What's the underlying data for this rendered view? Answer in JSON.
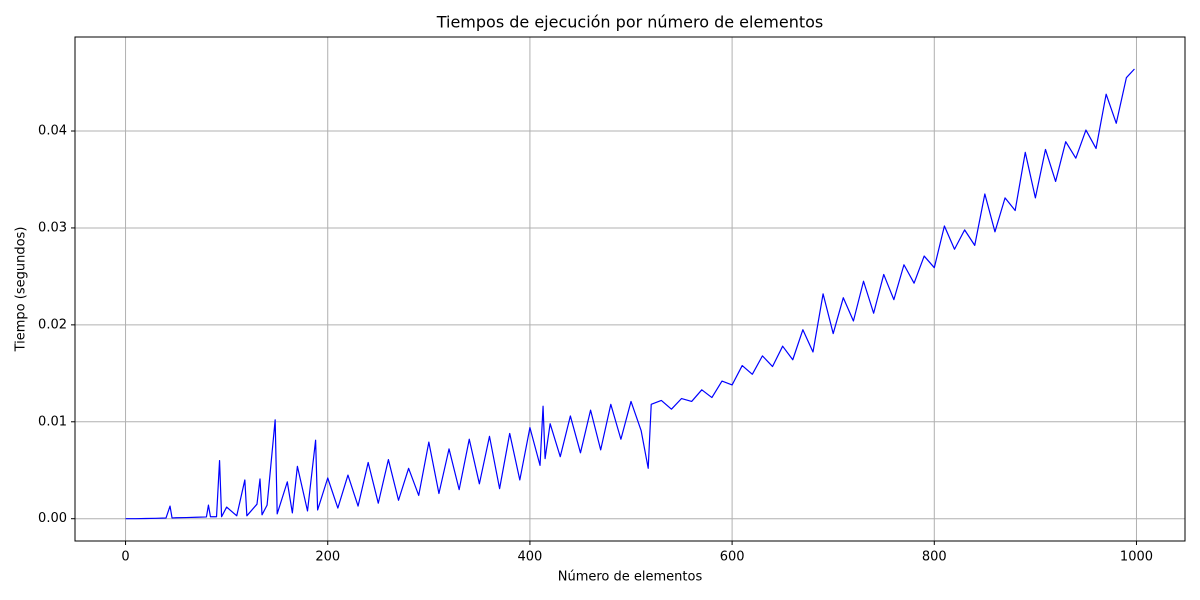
{
  "chart_data": {
    "type": "line",
    "title": "Tiempos de ejecución por número de elementos",
    "x_label": "Número de elementos",
    "y_label": "Tiempo (segundos)",
    "x": [
      0,
      10,
      20,
      30,
      40,
      44,
      46,
      50,
      60,
      70,
      80,
      82,
      84,
      90,
      93,
      95,
      100,
      110,
      118,
      120,
      130,
      133,
      135,
      140,
      148,
      150,
      160,
      165,
      170,
      180,
      188,
      190,
      200,
      210,
      220,
      230,
      240,
      250,
      260,
      270,
      280,
      290,
      300,
      310,
      320,
      330,
      340,
      350,
      360,
      370,
      380,
      390,
      400,
      410,
      413,
      415,
      420,
      430,
      440,
      450,
      460,
      470,
      480,
      490,
      500,
      510,
      517,
      520,
      530,
      540,
      550,
      560,
      570,
      580,
      590,
      600,
      610,
      620,
      630,
      640,
      650,
      660,
      670,
      680,
      690,
      700,
      710,
      720,
      730,
      740,
      750,
      760,
      770,
      780,
      790,
      800,
      810,
      820,
      830,
      840,
      850,
      860,
      870,
      880,
      890,
      900,
      910,
      920,
      930,
      940,
      950,
      960,
      970,
      980,
      990,
      998
    ],
    "series": [
      {
        "color": "#0000ff",
        "values": [
          0,
          0,
          2e-05,
          4e-05,
          7e-05,
          0.0013,
          8e-05,
          0.0001,
          0.00012,
          0.00015,
          0.00018,
          0.0014,
          0.0002,
          0.0002,
          0.006,
          0.0002,
          0.0012,
          0.0003,
          0.004,
          0.0003,
          0.0015,
          0.0041,
          0.0004,
          0.0014,
          0.0102,
          0.0005,
          0.0038,
          0.0006,
          0.0054,
          0.0008,
          0.0081,
          0.0009,
          0.0042,
          0.0011,
          0.0045,
          0.0013,
          0.0058,
          0.0016,
          0.0061,
          0.0019,
          0.0052,
          0.0024,
          0.0079,
          0.0026,
          0.0072,
          0.003,
          0.0082,
          0.0036,
          0.0085,
          0.0031,
          0.0088,
          0.004,
          0.0094,
          0.0055,
          0.0116,
          0.0062,
          0.0098,
          0.0064,
          0.0106,
          0.0068,
          0.0112,
          0.0071,
          0.0118,
          0.0082,
          0.0121,
          0.0091,
          0.0052,
          0.0118,
          0.0122,
          0.0113,
          0.0124,
          0.0121,
          0.0133,
          0.0125,
          0.0142,
          0.0138,
          0.0158,
          0.0149,
          0.0168,
          0.0157,
          0.0178,
          0.0164,
          0.0195,
          0.0172,
          0.0232,
          0.0191,
          0.0228,
          0.0204,
          0.0245,
          0.0212,
          0.0252,
          0.0226,
          0.0262,
          0.0243,
          0.0271,
          0.0259,
          0.0302,
          0.0278,
          0.0298,
          0.0282,
          0.0335,
          0.0296,
          0.0331,
          0.0318,
          0.0378,
          0.0331,
          0.0381,
          0.0348,
          0.0389,
          0.0372,
          0.0401,
          0.0382,
          0.0438,
          0.0408,
          0.0455,
          0.0464
        ]
      }
    ],
    "xlim": [
      -50,
      1048
    ],
    "ylim": [
      -0.0023,
      0.0497
    ],
    "xticks": [
      0,
      200,
      400,
      600,
      800,
      1000
    ],
    "yticks": [
      {
        "value": 0,
        "label": "0.00"
      },
      {
        "value": 0.01,
        "label": "0.01"
      },
      {
        "value": 0.02,
        "label": "0.02"
      },
      {
        "value": 0.03,
        "label": "0.03"
      },
      {
        "value": 0.04,
        "label": "0.04"
      }
    ],
    "grid": true
  }
}
